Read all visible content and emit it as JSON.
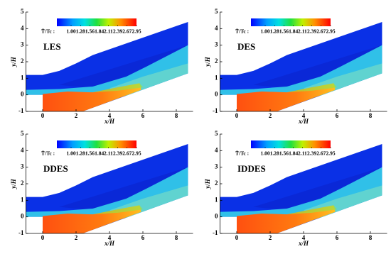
{
  "chart_data": [
    {
      "type": "contour",
      "label": "LES",
      "xlabel": "x/H",
      "ylabel": "y/H",
      "xlim": [
        -1,
        9
      ],
      "ylim": [
        -1,
        5
      ],
      "xticks": [
        0,
        2,
        4,
        6,
        8
      ],
      "yticks": [
        -1,
        0,
        1,
        2,
        3,
        4,
        5
      ],
      "colorbar": {
        "label": "T̃/Tc :",
        "range": [
          1,
          2.95
        ],
        "ticks": [
          {
            "value": 1,
            "label": "1.00"
          },
          1.28,
          1.56,
          1.84,
          2.11,
          2.39,
          2.67,
          2.95
        ]
      }
    },
    {
      "type": "contour",
      "label": "DES",
      "xlabel": "x/H",
      "ylabel": "y/H",
      "xlim": [
        -1,
        9
      ],
      "ylim": [
        -1,
        5
      ],
      "xticks": [
        0,
        2,
        4,
        6,
        8
      ],
      "yticks": [
        -1,
        0,
        1,
        2,
        3,
        4,
        5
      ],
      "colorbar": {
        "label": "T̃/Tc :",
        "range": [
          1,
          2.95
        ],
        "ticks": [
          {
            "value": 1,
            "label": "1.00"
          },
          1.28,
          1.56,
          1.84,
          2.11,
          2.39,
          2.67,
          2.95
        ]
      }
    },
    {
      "type": "contour",
      "label": "DDES",
      "xlabel": "x/H",
      "ylabel": "y/H",
      "xlim": [
        -1,
        9
      ],
      "ylim": [
        -1,
        5
      ],
      "xticks": [
        0,
        2,
        4,
        6,
        8
      ],
      "yticks": [
        -1,
        0,
        1,
        2,
        3,
        4,
        5
      ],
      "colorbar": {
        "label": "T̃/Tc :",
        "range": [
          1,
          2.95
        ],
        "ticks": [
          {
            "value": 1,
            "label": "1.00"
          },
          1.28,
          1.56,
          1.84,
          2.11,
          2.39,
          2.67,
          2.95
        ]
      }
    },
    {
      "type": "contour",
      "label": "IDDES",
      "xlabel": "x/H",
      "ylabel": "y/H",
      "xlim": [
        -1,
        9
      ],
      "ylim": [
        -1,
        5
      ],
      "xticks": [
        0,
        2,
        4,
        6,
        8
      ],
      "yticks": [
        -1,
        0,
        1,
        2,
        3,
        4,
        5
      ],
      "colorbar": {
        "label": "T̃/Tc :",
        "range": [
          1,
          2.95
        ],
        "ticks": [
          {
            "value": 1,
            "label": "1.00"
          },
          1.28,
          1.56,
          1.84,
          2.11,
          2.39,
          2.67,
          2.95
        ]
      }
    }
  ]
}
